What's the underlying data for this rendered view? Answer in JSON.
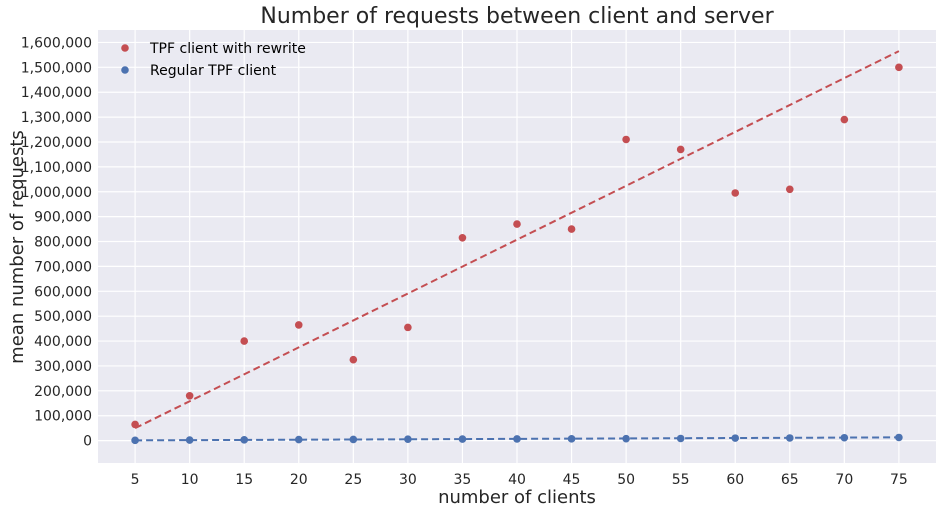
{
  "chart_data": {
    "type": "scatter",
    "title": "Number of requests between client and server",
    "xlabel": "number of clients",
    "ylabel": "mean number of requests",
    "x": [
      5,
      10,
      15,
      20,
      25,
      30,
      35,
      40,
      45,
      50,
      55,
      60,
      65,
      70,
      75
    ],
    "xticks": [
      "5",
      "10",
      "15",
      "20",
      "25",
      "30",
      "35",
      "40",
      "45",
      "50",
      "55",
      "60",
      "65",
      "70",
      "75"
    ],
    "yticks": [
      "0",
      "100,000",
      "200,000",
      "300,000",
      "400,000",
      "500,000",
      "600,000",
      "700,000",
      "800,000",
      "900,000",
      "1,000,000",
      "1,100,000",
      "1,200,000",
      "1,300,000",
      "1,400,000",
      "1,500,000",
      "1,600,000"
    ],
    "ytick_values": [
      0,
      100000,
      200000,
      300000,
      400000,
      500000,
      600000,
      700000,
      800000,
      900000,
      1000000,
      1100000,
      1200000,
      1300000,
      1400000,
      1500000,
      1600000
    ],
    "xlim": [
      1.6,
      78.4
    ],
    "ylim": [
      -90000,
      1650000
    ],
    "grid": true,
    "legend_position": "top-left",
    "series": [
      {
        "name": "TPF client with rewrite",
        "color": "#c44e52",
        "values": [
          65000,
          180000,
          400000,
          465000,
          325000,
          455000,
          815000,
          870000,
          850000,
          1210000,
          1170000,
          995000,
          1010000,
          1290000,
          1500000
        ],
        "trend": [
          50000,
          1565000
        ]
      },
      {
        "name": "Regular TPF client",
        "color": "#4c72b0",
        "values": [
          1000,
          2000,
          3000,
          4000,
          4500,
          5500,
          6000,
          6500,
          7000,
          7500,
          8500,
          10000,
          10500,
          11500,
          12500
        ],
        "trend": [
          1000,
          13000
        ]
      }
    ]
  }
}
